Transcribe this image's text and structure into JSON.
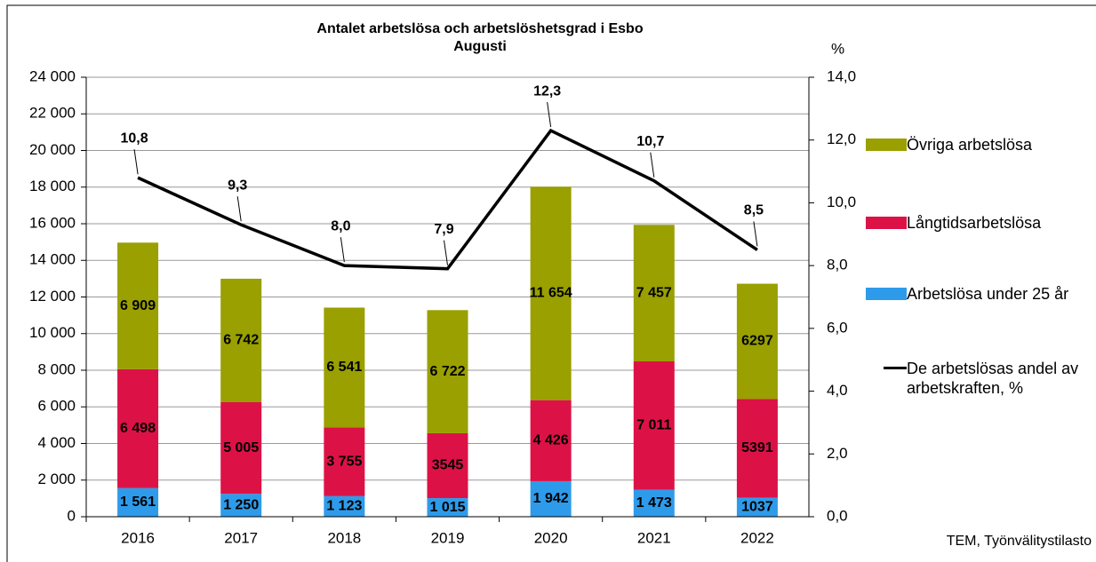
{
  "chart_data": {
    "type": "stacked_bar_line",
    "title": "Antalet arbetslösa och arbetslöshetsgrad i Esbo",
    "subtitle": "Augusti",
    "y2_label": "%",
    "source": "TEM, Työnvälitystilasto",
    "categories": [
      "2016",
      "2017",
      "2018",
      "2019",
      "2020",
      "2021",
      "2022"
    ],
    "series": [
      {
        "name": "Arbetslösa under 25 år",
        "color": "#2e9bea",
        "values": [
          1561,
          1250,
          1123,
          1015,
          1942,
          1473,
          1037
        ],
        "value_labels": [
          "1 561",
          "1 250",
          "1 123",
          "1 015",
          "1 942",
          "1 473",
          "1037"
        ]
      },
      {
        "name": "Långtidsarbetslösa",
        "color": "#dc1246",
        "values": [
          6498,
          5005,
          3755,
          3545,
          4426,
          7011,
          5391
        ],
        "value_labels": [
          "6 498",
          "5 005",
          "3 755",
          "3545",
          "4 426",
          "7 011",
          "5391"
        ]
      },
      {
        "name": "Övriga arbetslösa",
        "color": "#99a000",
        "values": [
          6909,
          6742,
          6541,
          6722,
          11654,
          7457,
          6297
        ],
        "value_labels": [
          "6 909",
          "6 742",
          "6 541",
          "6 722",
          "11 654",
          "7 457",
          "6297"
        ]
      },
      {
        "name": "De arbetslösas andel av arbetskraften, %",
        "color": "#000000",
        "axis": "y2",
        "values": [
          10.8,
          9.3,
          8.0,
          7.9,
          12.3,
          10.7,
          8.5
        ],
        "value_labels": [
          "10,8",
          "9,3",
          "8,0",
          "7,9",
          "12,3",
          "10,7",
          "8,5"
        ]
      }
    ],
    "legend_order": [
      2,
      1,
      0,
      3
    ],
    "ylim": [
      0,
      24000
    ],
    "yticks": [
      0,
      {
        "value": 2000,
        "label": "2 000"
      },
      {
        "value": 4000,
        "label": "4 000"
      },
      {
        "value": 6000,
        "label": "6 000"
      },
      {
        "value": 8000,
        "label": "8 000"
      },
      {
        "value": 10000,
        "label": "10 000"
      },
      {
        "value": 12000,
        "label": "12 000"
      },
      {
        "value": 14000,
        "label": "14 000"
      },
      {
        "value": 16000,
        "label": "16 000"
      },
      {
        "value": 18000,
        "label": "18 000"
      },
      {
        "value": 20000,
        "label": "20 000"
      },
      {
        "value": 22000,
        "label": "22 000"
      },
      {
        "value": 24000,
        "label": "24 000"
      }
    ],
    "y2lim": [
      0,
      14
    ],
    "y2ticks": [
      {
        "value": 0,
        "label": "0,0"
      },
      {
        "value": 2,
        "label": "2,0"
      },
      {
        "value": 4,
        "label": "4,0"
      },
      {
        "value": 6,
        "label": "6,0"
      },
      {
        "value": 8,
        "label": "8,0"
      },
      {
        "value": 10,
        "label": "10,0"
      },
      {
        "value": 12,
        "label": "12,0"
      },
      {
        "value": 14,
        "label": "14,0"
      }
    ],
    "grid": true
  }
}
